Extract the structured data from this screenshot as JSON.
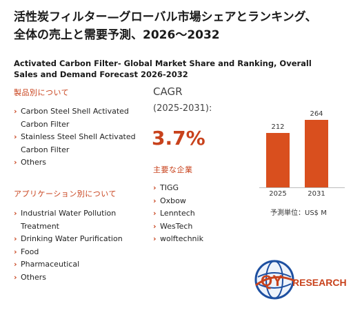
{
  "title_jp_line1": "活性炭フィルター—グローバル市場シェアとランキング、",
  "title_jp_line2": "全体の売上と需要予測、2026〜2032",
  "title_en": "Activated Carbon Filter- Global Market Share and Ranking, Overall Sales and Demand Forecast 2026-2032",
  "products": {
    "heading": "製品別について",
    "items": [
      "Carbon Steel Shell Activated Carbon Filter",
      "Stainless Steel Shell Activated Carbon Filter",
      "Others"
    ]
  },
  "applications": {
    "heading": "アプリケーション別について",
    "items": [
      "Industrial Water Pollution Treatment",
      "Drinking Water Purification",
      "Food",
      "Pharmaceutical",
      "Others"
    ]
  },
  "cagr": {
    "label": "CAGR",
    "range": "(2025-2031):",
    "value": "3.7%"
  },
  "companies": {
    "heading": "主要な企業",
    "items": [
      "TIGG",
      "Oxbow",
      "Lenntech",
      "WesTech",
      "wolftechnik"
    ]
  },
  "chart_data": {
    "type": "bar",
    "categories": [
      "2025",
      "2031"
    ],
    "values": [
      212,
      264
    ],
    "bar_color": "#d94f1e",
    "unit_label": "予測単位：US$ M"
  },
  "logo": {
    "text_q": "QY",
    "text_rest": "RESEARCH",
    "color_brand": "#c8421c",
    "color_globe": "#1d4fa0"
  }
}
